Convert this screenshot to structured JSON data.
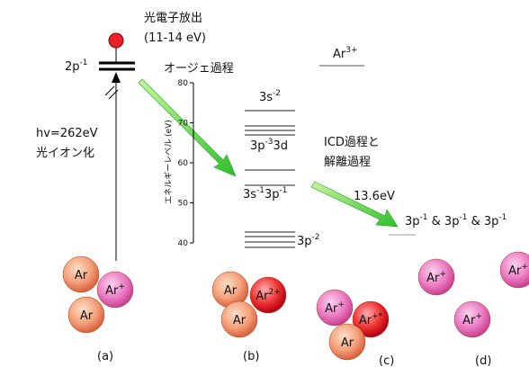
{
  "diagram": {
    "photoelectron": {
      "title": "光電子放出",
      "energy": "(11-14 eV)"
    },
    "core_hole": {
      "base": "2p",
      "sup": "-1"
    },
    "photon": {
      "energy": "hv=262eV",
      "process": "光イオン化"
    },
    "auger": {
      "label": "オージェ過程"
    },
    "axis": {
      "label": "エネルギーレベル (eV)",
      "ticks": [
        80,
        70,
        60,
        50,
        40
      ]
    },
    "levels": [
      {
        "parts": [
          {
            "base": "3s",
            "sup": "-2"
          }
        ]
      },
      {
        "parts": [
          {
            "base": "3p",
            "sup": "-3"
          },
          {
            "base": "3d"
          }
        ]
      },
      {
        "parts": [
          {
            "base": "3s",
            "sup": "-1"
          },
          {
            "base": "3p",
            "sup": "-1"
          }
        ]
      },
      {
        "parts": [
          {
            "base": "3p",
            "sup": "-2"
          }
        ]
      }
    ],
    "triple_ion": {
      "base": "Ar",
      "sup": "3+"
    },
    "icd": {
      "line1": "ICD過程と",
      "line2": "解離過程",
      "energy": "13.6eV"
    },
    "final_state": {
      "parts": [
        {
          "base": "3p",
          "sup": "-1"
        },
        {
          "base": " & 3p",
          "sup": "-1"
        },
        {
          "base": " & 3p",
          "sup": "-1"
        }
      ]
    },
    "atoms": [
      {
        "base": "Ar"
      },
      {
        "base": "Ar",
        "sup": "+"
      },
      {
        "base": "Ar"
      },
      {
        "base": "Ar"
      },
      {
        "base": "Ar",
        "sup": "2+"
      },
      {
        "base": "Ar"
      },
      {
        "base": "Ar",
        "sup": "+"
      },
      {
        "base": "Ar",
        "sup": "+*"
      },
      {
        "base": "Ar"
      },
      {
        "base": "Ar",
        "sup": "+"
      },
      {
        "base": "Ar",
        "sup": "+"
      },
      {
        "base": "Ar",
        "sup": "+"
      }
    ],
    "panels": [
      "(a)",
      "(b)",
      "(c)",
      "(d)"
    ]
  }
}
